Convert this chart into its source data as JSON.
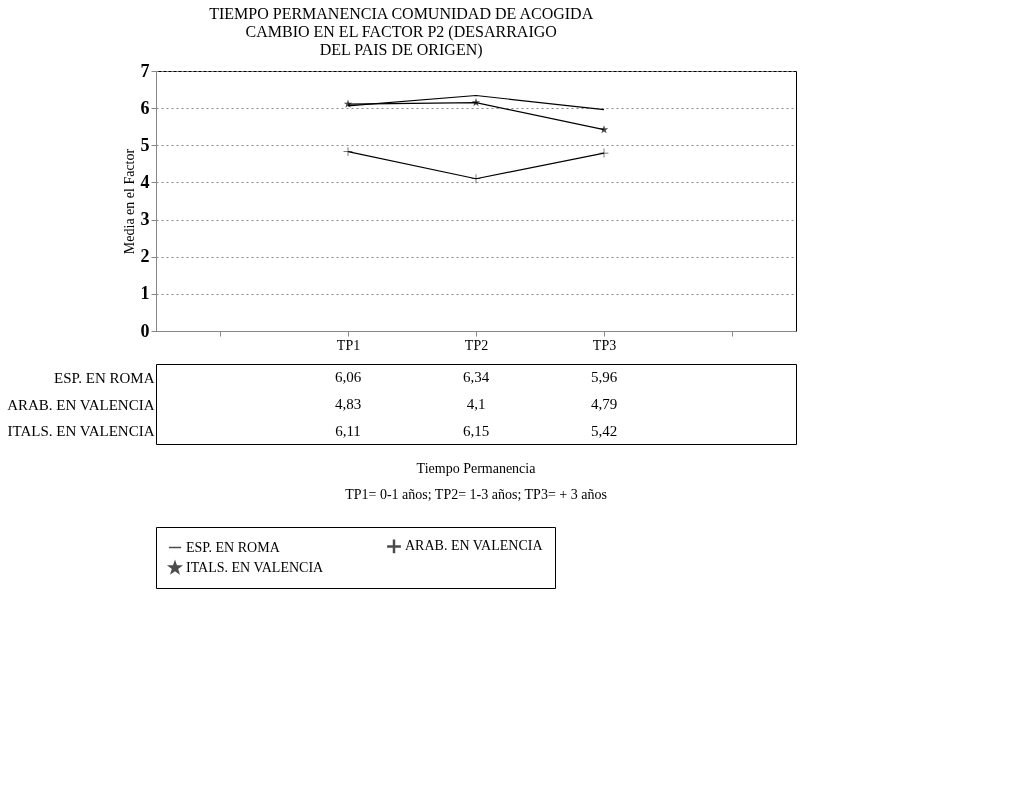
{
  "chart_data": {
    "type": "line",
    "title": "TIEMPO PERMANENCIA COMUNIDAD DE ACOGIDA\nCAMBIO EN EL FACTOR P2 (DESARRAIGO\nDEL PAIS DE ORIGEN)",
    "ylabel": "Media en el Factor",
    "categories": [
      null,
      "TP1",
      "TP2",
      "TP3",
      null
    ],
    "series": [
      {
        "name": "ESP. EN ROMA",
        "color": "#000000",
        "marker": "none",
        "values": [
          null,
          6.06,
          6.34,
          5.96,
          null
        ],
        "value_labels": [
          null,
          "6,06",
          "6,34",
          "5,96",
          null
        ]
      },
      {
        "name": "ARAB. EN VALENCIA",
        "color": "#000000",
        "marker": "cross",
        "values": [
          null,
          4.83,
          4.1,
          4.79,
          null
        ],
        "value_labels": [
          null,
          "4,83",
          "4,1",
          "4,79",
          null
        ]
      },
      {
        "name": "ITALS. EN VALENCIA",
        "color": "#000000",
        "marker": "star",
        "values": [
          null,
          6.11,
          6.15,
          5.42,
          null
        ],
        "value_labels": [
          null,
          "6,11",
          "6,15",
          "5,42",
          null
        ]
      }
    ],
    "ylim": [
      0,
      7
    ],
    "yticks": [
      0,
      1,
      2,
      3,
      4,
      5,
      6,
      7
    ],
    "grid": "y",
    "legend": "bottom",
    "annotations": [
      "Tiempo Permanencia",
      "TP1= 0-1 años; TP2= 1-3 años; TP3= + 3 años"
    ]
  }
}
